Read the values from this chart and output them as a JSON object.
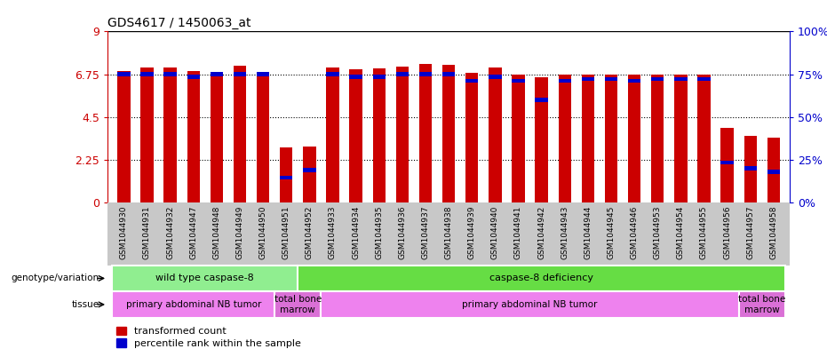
{
  "title": "GDS4617 / 1450063_at",
  "samples": [
    "GSM1044930",
    "GSM1044931",
    "GSM1044932",
    "GSM1044947",
    "GSM1044948",
    "GSM1044949",
    "GSM1044950",
    "GSM1044951",
    "GSM1044952",
    "GSM1044933",
    "GSM1044934",
    "GSM1044935",
    "GSM1044936",
    "GSM1044937",
    "GSM1044938",
    "GSM1044939",
    "GSM1044940",
    "GSM1044941",
    "GSM1044942",
    "GSM1044943",
    "GSM1044944",
    "GSM1044945",
    "GSM1044946",
    "GSM1044953",
    "GSM1044954",
    "GSM1044955",
    "GSM1044956",
    "GSM1044957",
    "GSM1044958"
  ],
  "red_values": [
    6.9,
    7.1,
    7.1,
    6.9,
    6.65,
    7.2,
    6.75,
    2.9,
    2.95,
    7.1,
    7.0,
    7.05,
    7.15,
    7.3,
    7.25,
    6.8,
    7.1,
    6.75,
    6.6,
    6.75,
    6.75,
    6.75,
    6.75,
    6.75,
    6.75,
    6.75,
    3.9,
    3.5,
    3.4
  ],
  "blue_values": [
    6.75,
    6.75,
    6.75,
    6.6,
    6.75,
    6.75,
    6.75,
    1.3,
    1.7,
    6.75,
    6.6,
    6.6,
    6.75,
    6.75,
    6.75,
    6.4,
    6.6,
    6.4,
    5.4,
    6.4,
    6.5,
    6.5,
    6.4,
    6.5,
    6.5,
    6.5,
    2.1,
    1.8,
    1.6
  ],
  "ylim_left": [
    0,
    9
  ],
  "ylim_right": [
    0,
    100
  ],
  "yticks_left": [
    0,
    2.25,
    4.5,
    6.75,
    9
  ],
  "yticks_right": [
    0,
    25,
    50,
    75,
    100
  ],
  "left_color": "#cc0000",
  "right_color": "#0000cc",
  "bar_width": 0.55,
  "genotype_groups": [
    {
      "label": "wild type caspase-8",
      "start": 0,
      "end": 8,
      "color": "#90ee90"
    },
    {
      "label": "caspase-8 deficiency",
      "start": 8,
      "end": 29,
      "color": "#66dd44"
    }
  ],
  "tissue_groups": [
    {
      "label": "primary abdominal NB tumor",
      "start": 0,
      "end": 7,
      "color": "#ee82ee"
    },
    {
      "label": "total bone\nmarrow",
      "start": 7,
      "end": 9,
      "color": "#da70d6"
    },
    {
      "label": "primary abdominal NB tumor",
      "start": 9,
      "end": 27,
      "color": "#ee82ee"
    },
    {
      "label": "total bone\nmarrow",
      "start": 27,
      "end": 29,
      "color": "#da70d6"
    }
  ],
  "bg_color": "#ffffff",
  "xticklabel_bg": "#c8c8c8",
  "genotype_light_green": "#90ee90",
  "genotype_green": "#44cc44"
}
